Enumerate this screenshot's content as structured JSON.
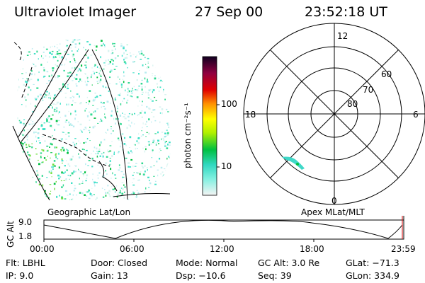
{
  "header": {
    "title": "Ultraviolet Imager",
    "date": "27 Sep 00",
    "time": "23:52:18 UT"
  },
  "images": {
    "left_caption": "Geographic Lat/Lon",
    "right_caption": "Apex MLat/MLT"
  },
  "colorbar": {
    "unit_label": "photon cm⁻²s⁻¹",
    "ticks": [
      "100",
      "10"
    ]
  },
  "polar": {
    "mlt_labels": {
      "top": "12",
      "left": "18",
      "right": "6",
      "bottom": "0"
    },
    "lat_labels": [
      "60",
      "70",
      "80"
    ]
  },
  "altitude_plot": {
    "ylabel": "GC Alt",
    "ymax": "9.0",
    "ymin": "1.8",
    "xticks": [
      "00:00",
      "06:00",
      "12:00",
      "18:00",
      "23:59"
    ]
  },
  "info": {
    "flt": "Flt: LBHL",
    "ip": "IP:  9.0",
    "door": "Door: Closed",
    "gain": "Gain: 13",
    "mode": "Mode: Normal",
    "dsp": "Dsp:  −10.6",
    "gcalt": "GC Alt: 3.0 Re",
    "seq": "Seq: 39",
    "glat": "GLat: −71.3",
    "glon": "GLon: 334.9"
  },
  "colors": {
    "bar_gradient": [
      "#f0f0f0",
      "#40e0d0",
      "#00c000",
      "#a0f000",
      "#ffff00",
      "#ff9000",
      "#e00000",
      "#a00030",
      "#600040",
      "#100020"
    ]
  }
}
